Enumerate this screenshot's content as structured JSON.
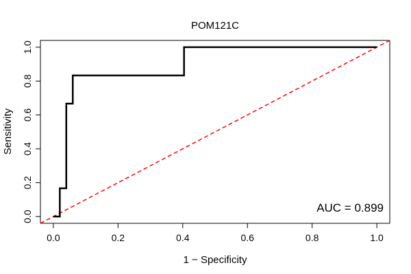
{
  "chart_data": {
    "type": "line",
    "title": "POM121C",
    "xlabel": "1 − Specificity",
    "ylabel": "Sensitivity",
    "xlim": [
      -0.04,
      1.04
    ],
    "ylim": [
      -0.04,
      1.04
    ],
    "grid": false,
    "xticks": [
      0.0,
      0.2,
      0.4,
      0.6,
      0.8,
      1.0
    ],
    "xtick_labels": [
      "0.0",
      "0.2",
      "0.4",
      "0.6",
      "0.8",
      "1.0"
    ],
    "yticks": [
      0.0,
      0.2,
      0.4,
      0.6,
      0.8,
      1.0
    ],
    "ytick_labels": [
      "0.0",
      "0.2",
      "0.4",
      "0.6",
      "0.8",
      "1.0"
    ],
    "series": [
      {
        "name": "ROC curve",
        "color": "#000000",
        "style": "solid",
        "x": [
          0.0,
          0.02,
          0.02,
          0.04,
          0.04,
          0.06,
          0.06,
          0.404,
          0.404,
          1.0
        ],
        "y": [
          0.0,
          0.0,
          0.1667,
          0.1667,
          0.6667,
          0.6667,
          0.8333,
          0.8333,
          1.0,
          1.0
        ]
      },
      {
        "name": "Reference diagonal",
        "color": "#ff0000",
        "style": "dashed",
        "x": [
          -0.04,
          1.04
        ],
        "y": [
          -0.04,
          1.04
        ]
      }
    ],
    "annotation": "AUC = 0.899"
  }
}
